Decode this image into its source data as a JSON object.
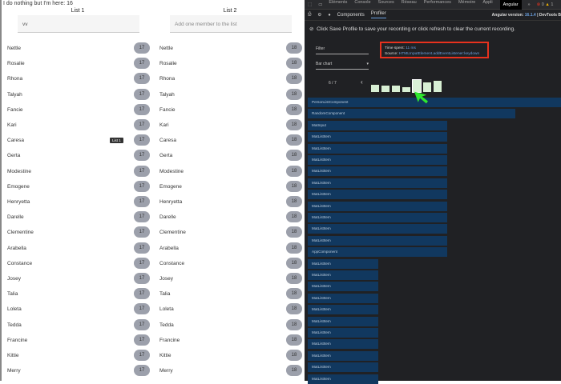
{
  "app": {
    "top_text": "I do nothing but I'm here: 16",
    "tooltip": "List 1",
    "lists": [
      {
        "title": "List 1",
        "input_value": "vv",
        "placeholder": "",
        "badge": "17"
      },
      {
        "title": "List 2",
        "input_value": "",
        "placeholder": "Add one member to the list",
        "badge": "18"
      }
    ],
    "names": [
      "Nettle",
      "Rosalie",
      "Rhona",
      "Talyah",
      "Fancie",
      "Kari",
      "Caresa",
      "Gerta",
      "Modestine",
      "Emogene",
      "Henryetta",
      "Darelle",
      "Clementine",
      "Arabella",
      "Constance",
      "Josey",
      "Talia",
      "Loleta",
      "Tedda",
      "Francine",
      "Kittie",
      "Merry"
    ]
  },
  "devtools": {
    "tabs": [
      "Éléments",
      "Console",
      "Sources",
      "Réseau",
      "Performances",
      "Mémoire",
      "Appli",
      "Angular"
    ],
    "active_tab": "Angular",
    "errors": "0",
    "warnings": "1",
    "subtabs": [
      "Components",
      "Profiler"
    ],
    "active_subtab": "Profiler",
    "version_label": "Angular version:",
    "version": "16.1.4",
    "devtools_label": "| DevTools B",
    "message": "Click Save Profile to save your recording or click refresh to clear the current recording.",
    "filter_label": "Filter",
    "view_select": "Bar chart",
    "time_spent_label": "Time spent:",
    "time_spent": "11 ms",
    "source_label": "Source:",
    "source": "HTMLInputElement.addEventListener:keydown",
    "page": "6 / 7",
    "frame_levels": [
      0.45,
      0.42,
      0.4,
      0.35,
      0.72,
      0.6,
      0.68
    ],
    "selected_frame": 5,
    "bar_color": "#d8f0d4",
    "highlight_color": "#e8321e",
    "components": [
      {
        "name": "PersonListComponent",
        "share": 1.0
      },
      {
        "name": "RandomComponent",
        "share": 0.82
      },
      {
        "name": "MatInput",
        "share": 0.55
      },
      {
        "name": "MatListItem",
        "share": 0.55
      },
      {
        "name": "MatListItem",
        "share": 0.55
      },
      {
        "name": "MatListItem",
        "share": 0.55
      },
      {
        "name": "MatListItem",
        "share": 0.55
      },
      {
        "name": "MatListItem",
        "share": 0.55
      },
      {
        "name": "MatListItem",
        "share": 0.55
      },
      {
        "name": "MatListItem",
        "share": 0.55
      },
      {
        "name": "MatListItem",
        "share": 0.55
      },
      {
        "name": "MatListItem",
        "share": 0.55
      },
      {
        "name": "MatListItem",
        "share": 0.55
      },
      {
        "name": "AppComponent",
        "share": 0.55
      },
      {
        "name": "MatListItem",
        "share": 0.28
      },
      {
        "name": "MatListItem",
        "share": 0.28
      },
      {
        "name": "MatListItem",
        "share": 0.28
      },
      {
        "name": "MatListItem",
        "share": 0.28
      },
      {
        "name": "MatListItem",
        "share": 0.28
      },
      {
        "name": "MatListItem",
        "share": 0.28
      },
      {
        "name": "MatListItem",
        "share": 0.28
      },
      {
        "name": "MatListItem",
        "share": 0.28
      },
      {
        "name": "MatListItem",
        "share": 0.28
      },
      {
        "name": "MatListItem",
        "share": 0.28
      },
      {
        "name": "MatListItem",
        "share": 0.28
      }
    ]
  }
}
